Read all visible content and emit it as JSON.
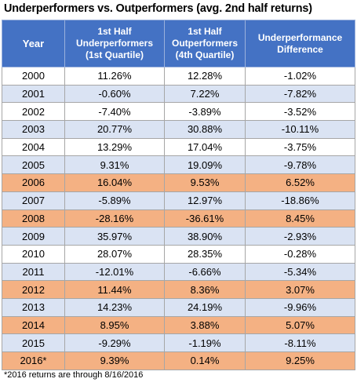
{
  "title": "Underperformers vs. Outperformers (avg. 2nd half returns)",
  "colors": {
    "header_bg": "#4472c4",
    "header_text": "#ffffff",
    "row_white": "#ffffff",
    "row_blue": "#dae3f3",
    "row_orange": "#f4b183"
  },
  "chart_data": {
    "type": "table",
    "title": "Underperformers vs. Outperformers (avg. 2nd half returns)",
    "columns": [
      {
        "key": "year",
        "lines": [
          "Year"
        ]
      },
      {
        "key": "under",
        "lines": [
          "1st Half",
          "Underperformers",
          "(1st Quartile)"
        ]
      },
      {
        "key": "out",
        "lines": [
          "1st Half",
          "Outperformers",
          "(4th Quartile)"
        ]
      },
      {
        "key": "diff",
        "lines": [
          "Underperformance",
          "Difference"
        ]
      }
    ],
    "rows": [
      {
        "year": "2000",
        "under": "11.26%",
        "out": "12.28%",
        "diff": "-1.02%",
        "highlight": false
      },
      {
        "year": "2001",
        "under": "-0.60%",
        "out": "7.22%",
        "diff": "-7.82%",
        "highlight": false
      },
      {
        "year": "2002",
        "under": "-7.40%",
        "out": "-3.89%",
        "diff": "-3.52%",
        "highlight": false
      },
      {
        "year": "2003",
        "under": "20.77%",
        "out": "30.88%",
        "diff": "-10.11%",
        "highlight": false
      },
      {
        "year": "2004",
        "under": "13.29%",
        "out": "17.04%",
        "diff": "-3.75%",
        "highlight": false
      },
      {
        "year": "2005",
        "under": "9.31%",
        "out": "19.09%",
        "diff": "-9.78%",
        "highlight": false
      },
      {
        "year": "2006",
        "under": "16.04%",
        "out": "9.53%",
        "diff": "6.52%",
        "highlight": true
      },
      {
        "year": "2007",
        "under": "-5.89%",
        "out": "12.97%",
        "diff": "-18.86%",
        "highlight": false
      },
      {
        "year": "2008",
        "under": "-28.16%",
        "out": "-36.61%",
        "diff": "8.45%",
        "highlight": true
      },
      {
        "year": "2009",
        "under": "35.97%",
        "out": "38.90%",
        "diff": "-2.93%",
        "highlight": false
      },
      {
        "year": "2010",
        "under": "28.07%",
        "out": "28.35%",
        "diff": "-0.28%",
        "highlight": false
      },
      {
        "year": "2011",
        "under": "-12.01%",
        "out": "-6.66%",
        "diff": "-5.34%",
        "highlight": false
      },
      {
        "year": "2012",
        "under": "11.44%",
        "out": "8.36%",
        "diff": "3.07%",
        "highlight": true
      },
      {
        "year": "2013",
        "under": "14.23%",
        "out": "24.19%",
        "diff": "-9.96%",
        "highlight": false
      },
      {
        "year": "2014",
        "under": "8.95%",
        "out": "3.88%",
        "diff": "5.07%",
        "highlight": true
      },
      {
        "year": "2015",
        "under": "-9.29%",
        "out": "-1.19%",
        "diff": "-8.11%",
        "highlight": false
      },
      {
        "year": "2016*",
        "under": "9.39%",
        "out": "0.14%",
        "diff": "9.25%",
        "highlight": true
      }
    ]
  },
  "footnote": "*2016 returns are through 8/16/2016"
}
